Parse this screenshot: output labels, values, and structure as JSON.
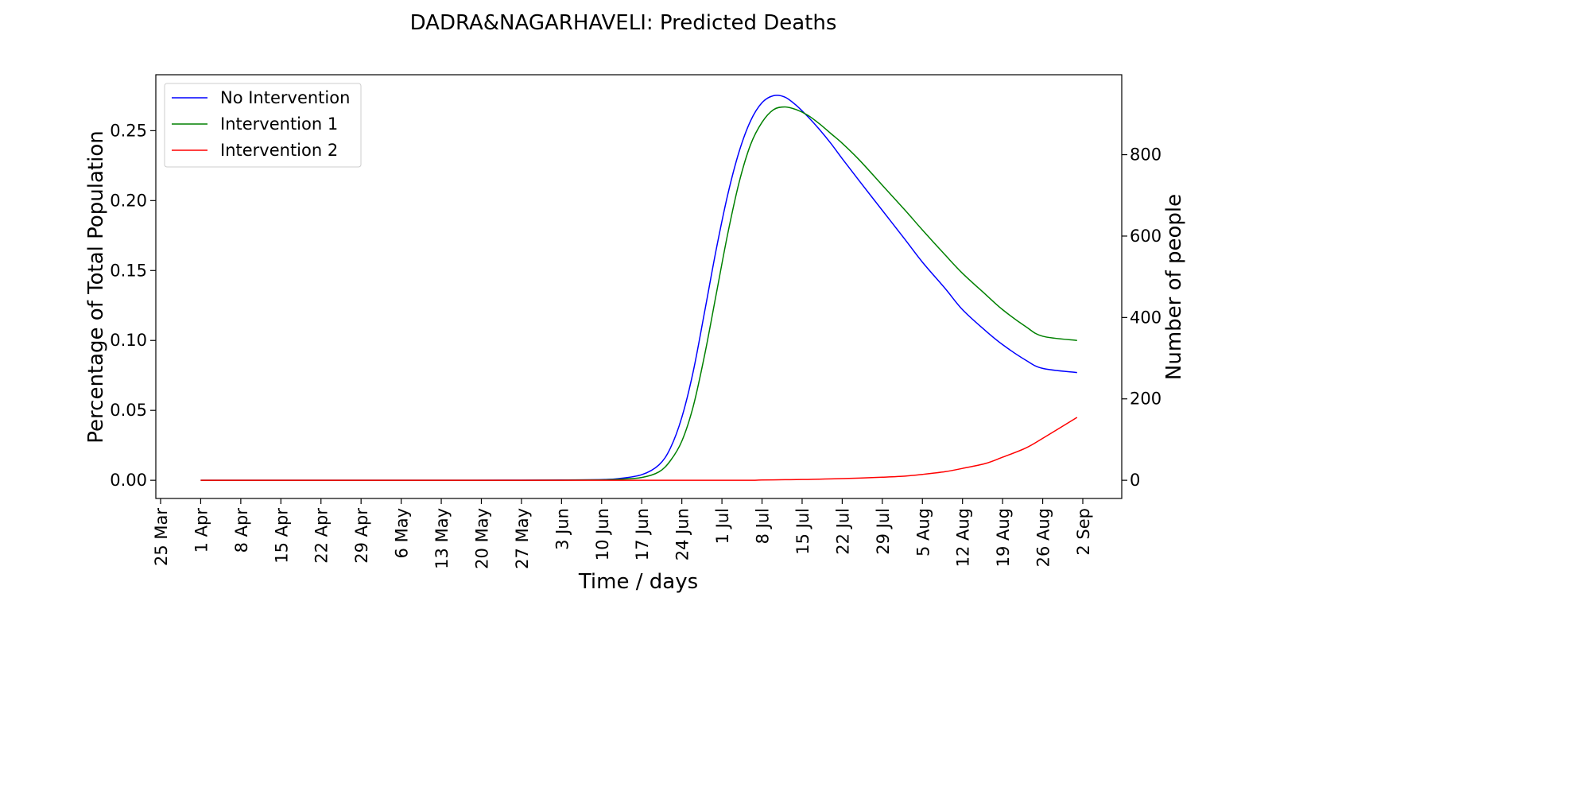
{
  "chart_data": {
    "type": "line",
    "title": "DADRA&NAGARHAVELI: Predicted Deaths",
    "xlabel": "Time / days",
    "ylabel": "Percentage of Total Population",
    "ylabel_right": "Number of people",
    "x_ticks": [
      "25 Mar",
      "1 Apr",
      "8 Apr",
      "15 Apr",
      "22 Apr",
      "29 Apr",
      "6 May",
      "13 May",
      "20 May",
      "27 May",
      "3 Jun",
      "10 Jun",
      "17 Jun",
      "24 Jun",
      "1 Jul",
      "8 Jul",
      "15 Jul",
      "22 Jul",
      "29 Jul",
      "5 Aug",
      "12 Aug",
      "19 Aug",
      "26 Aug",
      "2 Sep"
    ],
    "y_ticks": [
      "0.00",
      "0.05",
      "0.10",
      "0.15",
      "0.20",
      "0.25"
    ],
    "y_ticks_right": [
      "0",
      "200",
      "400",
      "600",
      "800"
    ],
    "ylim": [
      -0.013,
      0.29
    ],
    "y_right_per_left_unit": 3436,
    "legend_position": "upper left",
    "x": [
      "1 Apr",
      "15 Apr",
      "29 Apr",
      "13 May",
      "27 May",
      "3 Jun",
      "10 Jun",
      "13 Jun",
      "17 Jun",
      "20 Jun",
      "22 Jun",
      "24 Jun",
      "26 Jun",
      "28 Jun",
      "30 Jun",
      "2 Jul",
      "4 Jul",
      "6 Jul",
      "8 Jul",
      "10 Jul",
      "12 Jul",
      "14 Jul",
      "16 Jul",
      "18 Jul",
      "20 Jul",
      "22 Jul",
      "25 Jul",
      "29 Jul",
      "2 Aug",
      "5 Aug",
      "9 Aug",
      "12 Aug",
      "16 Aug",
      "19 Aug",
      "23 Aug",
      "26 Aug",
      "1 Sep"
    ],
    "series": [
      {
        "name": "No Intervention",
        "color": "#0000ff",
        "values": [
          0,
          0,
          0,
          0,
          0.0001,
          0.0002,
          0.0005,
          0.0012,
          0.004,
          0.011,
          0.023,
          0.045,
          0.078,
          0.121,
          0.165,
          0.204,
          0.235,
          0.257,
          0.27,
          0.275,
          0.274,
          0.268,
          0.26,
          0.251,
          0.241,
          0.23,
          0.214,
          0.193,
          0.172,
          0.156,
          0.137,
          0.122,
          0.107,
          0.097,
          0.086,
          0.08,
          0.077
        ]
      },
      {
        "name": "Intervention 1",
        "color": "#008000",
        "values": [
          0,
          0,
          0,
          0,
          0,
          0.0001,
          0.0003,
          0.0007,
          0.002,
          0.006,
          0.014,
          0.028,
          0.053,
          0.09,
          0.133,
          0.176,
          0.213,
          0.24,
          0.256,
          0.265,
          0.267,
          0.265,
          0.261,
          0.255,
          0.248,
          0.241,
          0.229,
          0.211,
          0.193,
          0.179,
          0.161,
          0.148,
          0.133,
          0.122,
          0.11,
          0.103,
          0.1
        ]
      },
      {
        "name": "Intervention 2",
        "color": "#ff0000",
        "values": [
          0,
          0,
          0,
          0,
          0,
          0,
          0,
          0,
          0,
          0,
          0,
          0,
          0,
          0,
          0,
          0,
          0,
          0,
          0.0002,
          0.0003,
          0.0004,
          0.0005,
          0.0006,
          0.0008,
          0.001,
          0.0012,
          0.0016,
          0.0022,
          0.003,
          0.0042,
          0.0062,
          0.0085,
          0.012,
          0.0165,
          0.023,
          0.03,
          0.045
        ]
      }
    ]
  }
}
